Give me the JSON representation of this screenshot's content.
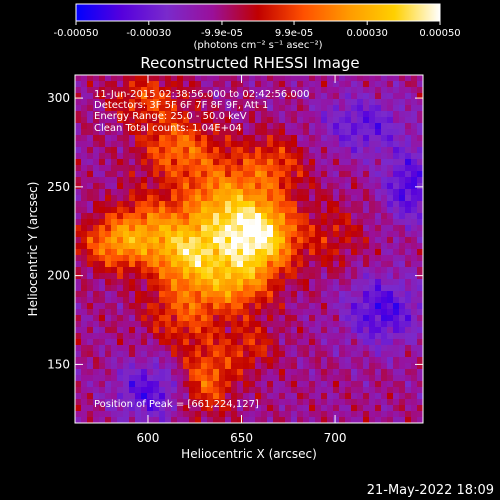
{
  "chart_data": {
    "type": "heatmap",
    "title": "Reconstructed RHESSI Image",
    "xlabel": "Heliocentric X (arcsec)",
    "ylabel": "Heliocentric Y (arcsec)",
    "xlim": [
      561,
      747
    ],
    "ylim": [
      117,
      313
    ],
    "x_ticks": [
      {
        "value": 600,
        "label": "600"
      },
      {
        "value": 650,
        "label": "650"
      },
      {
        "value": 700,
        "label": "700"
      }
    ],
    "y_ticks": [
      {
        "value": 150,
        "label": "150"
      },
      {
        "value": 200,
        "label": "200"
      },
      {
        "value": 250,
        "label": "250"
      },
      {
        "value": 300,
        "label": "300"
      }
    ],
    "colorbar": {
      "range": [
        -0.0005,
        0.0005
      ],
      "unit_label": "(photons cm⁻² s⁻¹ asec⁻²)",
      "ticks": [
        {
          "value": -0.0005,
          "label": "-0.00050"
        },
        {
          "value": -0.0003,
          "label": "-0.00030"
        },
        {
          "value": -9.9e-05,
          "label": "-9.9e-05"
        },
        {
          "value": 9.9e-05,
          "label": "9.9e-05"
        },
        {
          "value": 0.0003,
          "label": "0.00030"
        },
        {
          "value": 0.0005,
          "label": "0.00050"
        }
      ],
      "colors": [
        "#0000ff",
        "#5500dd",
        "#7a2acc",
        "#9a109a",
        "#c00000",
        "#ff5000",
        "#ff9a00",
        "#ffd000",
        "#ffffff"
      ]
    },
    "sources": [
      {
        "x": 660,
        "y": 222,
        "intensity": 0.0005,
        "sx": 14,
        "sy": 14
      },
      {
        "x": 640,
        "y": 238,
        "intensity": 0.00036,
        "sx": 16,
        "sy": 20
      },
      {
        "x": 622,
        "y": 212,
        "intensity": 0.00034,
        "sx": 12,
        "sy": 12
      },
      {
        "x": 600,
        "y": 225,
        "intensity": 0.0003,
        "sx": 14,
        "sy": 14
      },
      {
        "x": 580,
        "y": 218,
        "intensity": 0.00026,
        "sx": 12,
        "sy": 10
      },
      {
        "x": 646,
        "y": 196,
        "intensity": 0.0003,
        "sx": 14,
        "sy": 12
      },
      {
        "x": 615,
        "y": 272,
        "intensity": 0.00026,
        "sx": 14,
        "sy": 12
      },
      {
        "x": 600,
        "y": 300,
        "intensity": 0.0002,
        "sx": 14,
        "sy": 10
      },
      {
        "x": 668,
        "y": 262,
        "intensity": 0.0002,
        "sx": 12,
        "sy": 12
      },
      {
        "x": 618,
        "y": 180,
        "intensity": 0.00022,
        "sx": 14,
        "sy": 14
      },
      {
        "x": 632,
        "y": 142,
        "intensity": 0.00026,
        "sx": 10,
        "sy": 14
      },
      {
        "x": 655,
        "y": 160,
        "intensity": 0.00016,
        "sx": 10,
        "sy": 10
      },
      {
        "x": 700,
        "y": 222,
        "intensity": 0.00012,
        "sx": 12,
        "sy": 14
      },
      {
        "x": 725,
        "y": 180,
        "intensity": -0.00026,
        "sx": 14,
        "sy": 14
      },
      {
        "x": 600,
        "y": 135,
        "intensity": -0.00024,
        "sx": 12,
        "sy": 12
      },
      {
        "x": 715,
        "y": 285,
        "intensity": -0.0002,
        "sx": 16,
        "sy": 12
      },
      {
        "x": 740,
        "y": 250,
        "intensity": -0.00026,
        "sx": 10,
        "sy": 14
      }
    ],
    "annotations": [
      "11-Jun-2015 02:38:56.000 to 02:42:56.000",
      "Detectors: 3F 5F 6F 7F 8F 9F, Att 1",
      "Energy Range: 25.0 - 50.0 keV",
      "Clean     Total counts: 1.04E+04"
    ],
    "peak_label": "Position of Peak = [661,224,127]",
    "grid": false,
    "legend": "none"
  },
  "footer": {
    "timestamp": "21-May-2022 18:09"
  }
}
